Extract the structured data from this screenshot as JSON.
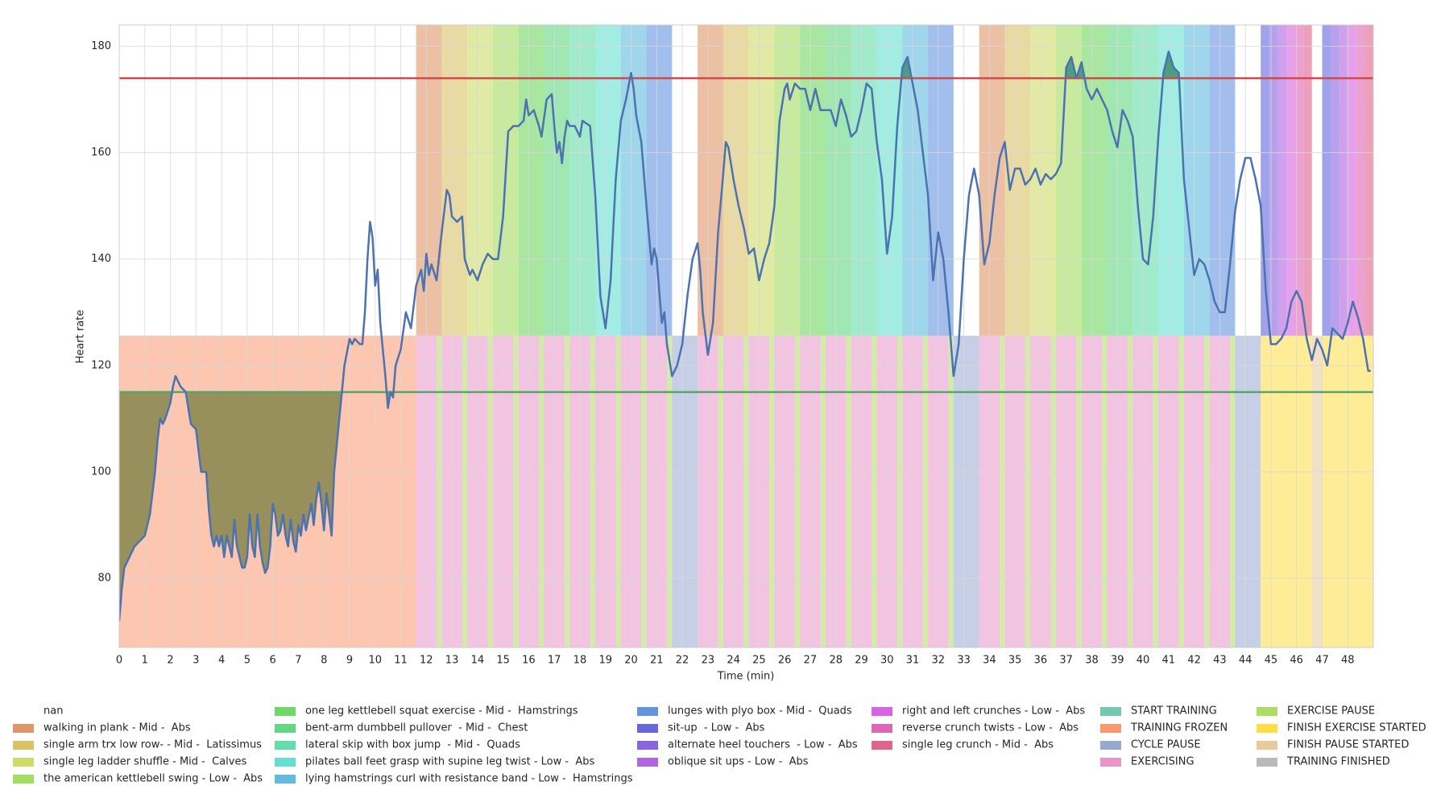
{
  "chart_data": {
    "type": "line",
    "xlabel": "Time (min)",
    "ylabel": "Heart rate",
    "xlim": [
      0,
      49
    ],
    "ylim": [
      67,
      184
    ],
    "xticks": [
      0,
      1,
      2,
      3,
      4,
      5,
      6,
      7,
      8,
      9,
      10,
      11,
      12,
      13,
      14,
      15,
      16,
      17,
      18,
      19,
      20,
      21,
      22,
      23,
      24,
      25,
      26,
      27,
      28,
      29,
      30,
      31,
      32,
      33,
      34,
      35,
      36,
      37,
      38,
      39,
      40,
      41,
      42,
      43,
      44,
      45,
      46,
      47,
      48
    ],
    "yticks": [
      80,
      100,
      120,
      140,
      160,
      180
    ],
    "grid": true,
    "color": "#4c72b0",
    "x": [
      0,
      0.1,
      0.2,
      0.4,
      0.6,
      0.8,
      1.0,
      1.2,
      1.4,
      1.5,
      1.6,
      1.7,
      1.8,
      2.0,
      2.1,
      2.2,
      2.4,
      2.6,
      2.8,
      3.0,
      3.1,
      3.2,
      3.4,
      3.5,
      3.6,
      3.7,
      3.8,
      3.9,
      4.0,
      4.1,
      4.2,
      4.3,
      4.4,
      4.5,
      4.6,
      4.7,
      4.8,
      4.9,
      5.0,
      5.1,
      5.2,
      5.3,
      5.4,
      5.5,
      5.6,
      5.7,
      5.8,
      5.9,
      6.0,
      6.1,
      6.2,
      6.3,
      6.4,
      6.5,
      6.6,
      6.7,
      6.8,
      6.9,
      7.0,
      7.1,
      7.2,
      7.3,
      7.5,
      7.6,
      7.7,
      7.8,
      7.9,
      8.0,
      8.1,
      8.2,
      8.3,
      8.4,
      8.6,
      8.8,
      9.0,
      9.1,
      9.2,
      9.4,
      9.5,
      9.6,
      9.7,
      9.8,
      9.9,
      10.0,
      10.1,
      10.2,
      10.4,
      10.5,
      10.6,
      10.7,
      10.8,
      11.0,
      11.2,
      11.4,
      11.6,
      11.8,
      11.9,
      12.0,
      12.1,
      12.2,
      12.4,
      12.6,
      12.8,
      12.9,
      13.0,
      13.2,
      13.4,
      13.5,
      13.7,
      13.8,
      14.0,
      14.2,
      14.4,
      14.6,
      14.8,
      15.0,
      15.2,
      15.4,
      15.6,
      15.8,
      15.9,
      16.0,
      16.2,
      16.4,
      16.5,
      16.7,
      16.9,
      17.0,
      17.1,
      17.2,
      17.3,
      17.4,
      17.5,
      17.6,
      17.8,
      18.0,
      18.1,
      18.4,
      18.6,
      18.8,
      19.0,
      19.2,
      19.4,
      19.6,
      19.8,
      20.0,
      20.1,
      20.2,
      20.4,
      20.6,
      20.8,
      20.9,
      21.0,
      21.2,
      21.3,
      21.4,
      21.6,
      21.8,
      22.0,
      22.2,
      22.4,
      22.6,
      22.7,
      22.8,
      22.9,
      23.0,
      23.2,
      23.4,
      23.6,
      23.7,
      23.8,
      24.0,
      24.2,
      24.4,
      24.6,
      24.8,
      25.0,
      25.2,
      25.4,
      25.6,
      25.8,
      26.0,
      26.1,
      26.2,
      26.4,
      26.6,
      26.8,
      27.0,
      27.2,
      27.4,
      27.8,
      28.0,
      28.2,
      28.4,
      28.6,
      28.8,
      29.0,
      29.2,
      29.4,
      29.6,
      29.8,
      30.0,
      30.2,
      30.4,
      30.6,
      30.8,
      31.0,
      31.2,
      31.4,
      31.6,
      31.8,
      32.0,
      32.2,
      32.4,
      32.6,
      32.8,
      33.0,
      33.2,
      33.4,
      33.6,
      33.8,
      34.0,
      34.2,
      34.4,
      34.6,
      34.8,
      35.0,
      35.2,
      35.4,
      35.6,
      35.8,
      36.0,
      36.2,
      36.4,
      36.6,
      36.8,
      37.0,
      37.2,
      37.4,
      37.6,
      37.8,
      38.0,
      38.2,
      38.4,
      38.6,
      38.8,
      39.0,
      39.2,
      39.4,
      39.6,
      39.8,
      40.0,
      40.2,
      40.4,
      40.6,
      40.8,
      41.0,
      41.2,
      41.4,
      41.6,
      41.8,
      42.0,
      42.2,
      42.4,
      42.6,
      42.8,
      43.0,
      43.2,
      43.4,
      43.6,
      43.8,
      44.0,
      44.2,
      44.4,
      44.6,
      44.8,
      45.0,
      45.2,
      45.4,
      45.6,
      45.8,
      46.0,
      46.2,
      46.4,
      46.6,
      46.8,
      47.0,
      47.2,
      47.4,
      47.6,
      47.8,
      48.0,
      48.2,
      48.4,
      48.6,
      48.8,
      48.9
    ],
    "values": [
      72,
      78,
      82,
      84,
      86,
      87,
      88,
      92,
      100,
      106,
      110,
      109,
      110,
      113,
      116,
      118,
      116,
      115,
      109,
      108,
      104,
      100,
      100,
      93,
      88,
      86,
      88,
      86,
      88,
      84,
      88,
      86,
      84,
      91,
      86,
      84,
      82,
      82,
      84,
      92,
      86,
      84,
      92,
      86,
      83,
      81,
      82,
      86,
      94,
      92,
      88,
      89,
      92,
      88,
      86,
      91,
      87,
      85,
      90,
      88,
      92,
      89,
      94,
      90,
      95,
      98,
      94,
      89,
      96,
      92,
      88,
      100,
      110,
      120,
      125,
      124,
      125,
      124,
      124,
      130,
      140,
      147,
      144,
      135,
      138,
      128,
      118,
      112,
      115,
      114,
      120,
      123,
      130,
      127,
      135,
      138,
      134,
      141,
      137,
      139,
      136,
      145,
      153,
      152,
      148,
      147,
      148,
      140,
      137,
      138,
      136,
      139,
      141,
      140,
      140,
      148,
      164,
      165,
      165,
      166,
      170,
      167,
      168,
      165,
      163,
      170,
      171,
      165,
      160,
      162,
      158,
      163,
      166,
      165,
      165,
      163,
      166,
      165,
      152,
      133,
      127,
      136,
      155,
      166,
      170,
      175,
      172,
      167,
      162,
      150,
      139,
      142,
      140,
      128,
      130,
      124,
      118,
      120,
      124,
      133,
      140,
      143,
      138,
      130,
      126,
      122,
      128,
      145,
      156,
      162,
      161,
      155,
      150,
      146,
      141,
      142,
      136,
      140,
      143,
      150,
      166,
      172,
      173,
      170,
      173,
      172,
      172,
      168,
      172,
      168,
      168,
      165,
      170,
      167,
      163,
      164,
      168,
      173,
      172,
      162,
      155,
      141,
      148,
      165,
      176,
      178,
      173,
      168,
      160,
      152,
      136,
      145,
      140,
      130,
      118,
      124,
      140,
      152,
      157,
      152,
      139,
      143,
      152,
      159,
      162,
      153,
      157,
      157,
      154,
      155,
      157,
      154,
      156,
      155,
      156,
      158,
      176,
      178,
      174,
      177,
      172,
      170,
      172,
      170,
      168,
      164,
      161,
      168,
      166,
      163,
      150,
      140,
      139,
      148,
      163,
      175,
      179,
      176,
      175,
      155,
      146,
      137,
      140,
      139,
      136,
      132,
      130,
      130,
      139,
      149,
      155,
      159,
      159,
      155,
      150,
      134,
      124,
      124,
      125,
      127,
      132,
      134,
      132,
      125,
      121,
      125,
      123,
      120,
      127,
      126,
      125,
      128,
      132,
      129,
      125,
      119,
      119
    ],
    "upper_limit": {
      "value": 174,
      "color": "#d0494c",
      "fill": "#4f9d80"
    },
    "lower_limit": {
      "value": 115,
      "color": "#55a868",
      "fill": "#978f5c"
    },
    "band_split": 125.6,
    "legend": [
      {
        "name": "nan"
      },
      {
        "name": "walking in plank - Mid -  Abs",
        "color": "#db8c5a"
      },
      {
        "name": "single arm trx low row- - Mid -  Latissimus",
        "color": "#d6bb55"
      },
      {
        "name": "single leg ladder shuffle - Mid -  Calves",
        "color": "#c8d85a"
      },
      {
        "name": "the american kettlebell swing - Low -  Abs",
        "color": "#9ad850"
      },
      {
        "name": "one leg kettlebell squat exercise - Mid -  Hamstrings",
        "color": "#62d454"
      },
      {
        "name": "bent-arm dumbbell pullover  - Mid -  Chest",
        "color": "#52d474"
      },
      {
        "name": "lateral skip with box jump  - Mid -  Quads",
        "color": "#54d8a2"
      },
      {
        "name": "pilates ball feet grasp with supine leg twist - Low -  Abs",
        "color": "#54dccc"
      },
      {
        "name": "lying hamstrings curl with resistance band - Low -  Hamstrings",
        "color": "#52b4dc"
      },
      {
        "name": "lunges with plyo box - Mid -  Quads",
        "color": "#5488dc"
      },
      {
        "name": "sit-up  - Low -  Abs",
        "color": "#5456dc"
      },
      {
        "name": "alternate heel touchers  - Low -  Abs",
        "color": "#7c54dc"
      },
      {
        "name": "oblique sit ups - Low -  Abs",
        "color": "#a854dc"
      },
      {
        "name": "right and left crunches - Low -  Abs",
        "color": "#d454dc"
      },
      {
        "name": "reverse crunch twists - Low -  Abs",
        "color": "#dc54ae"
      },
      {
        "name": "single leg crunch - Mid -  Abs",
        "color": "#dc5480"
      },
      {
        "name": "START TRAINING",
        "color": "#66c2a5"
      },
      {
        "name": "TRAINING FROZEN",
        "color": "#fc8d62"
      },
      {
        "name": "CYCLE PAUSE",
        "color": "#8da0cb"
      },
      {
        "name": "EXERCISING",
        "color": "#e78ac3"
      },
      {
        "name": "EXERCISE PAUSE",
        "color": "#a6d854"
      },
      {
        "name": "FINISH EXERCISE STARTED",
        "color": "#ffd92f"
      },
      {
        "name": "FINISH PAUSE STARTED",
        "color": "#e5c494"
      },
      {
        "name": "TRAINING FINISHED",
        "color": "#b3b3b3"
      }
    ],
    "exercise_bands": [
      [
        11.6,
        12.6,
        1
      ],
      [
        12.6,
        13.6,
        2
      ],
      [
        13.6,
        14.6,
        3
      ],
      [
        14.6,
        15.6,
        4
      ],
      [
        15.6,
        16.6,
        5
      ],
      [
        16.6,
        17.6,
        6
      ],
      [
        17.6,
        18.6,
        7
      ],
      [
        18.6,
        19.6,
        8
      ],
      [
        19.6,
        20.6,
        9
      ],
      [
        20.6,
        21.6,
        10
      ],
      [
        22.6,
        23.6,
        1
      ],
      [
        23.6,
        24.6,
        2
      ],
      [
        24.6,
        25.6,
        3
      ],
      [
        25.6,
        26.6,
        4
      ],
      [
        26.6,
        27.6,
        5
      ],
      [
        27.6,
        28.6,
        6
      ],
      [
        28.6,
        29.6,
        7
      ],
      [
        29.6,
        30.6,
        8
      ],
      [
        30.6,
        31.6,
        9
      ],
      [
        31.6,
        32.6,
        10
      ],
      [
        33.6,
        34.6,
        1
      ],
      [
        34.6,
        35.6,
        2
      ],
      [
        35.6,
        36.6,
        3
      ],
      [
        36.6,
        37.6,
        4
      ],
      [
        37.6,
        38.6,
        5
      ],
      [
        38.6,
        39.6,
        6
      ],
      [
        39.6,
        40.6,
        7
      ],
      [
        40.6,
        41.6,
        8
      ],
      [
        41.6,
        42.6,
        9
      ],
      [
        42.6,
        43.6,
        10
      ],
      [
        44.6,
        44.93,
        11
      ],
      [
        44.93,
        45.27,
        12
      ],
      [
        45.27,
        45.6,
        13
      ],
      [
        45.6,
        45.93,
        14
      ],
      [
        45.93,
        46.27,
        15
      ],
      [
        46.27,
        46.6,
        16
      ],
      [
        47.0,
        47.33,
        11
      ],
      [
        47.33,
        47.67,
        12
      ],
      [
        47.67,
        48.0,
        13
      ],
      [
        48.0,
        48.33,
        14
      ],
      [
        48.33,
        48.67,
        15
      ],
      [
        48.67,
        49.0,
        16
      ]
    ],
    "state_bands": [
      [
        0,
        11.6,
        18
      ],
      [
        11.6,
        12.4,
        20
      ],
      [
        12.4,
        12.6,
        21
      ],
      [
        12.6,
        13.4,
        20
      ],
      [
        13.4,
        13.6,
        21
      ],
      [
        13.6,
        14.4,
        20
      ],
      [
        14.4,
        14.6,
        21
      ],
      [
        14.6,
        15.4,
        20
      ],
      [
        15.4,
        15.6,
        21
      ],
      [
        15.6,
        16.4,
        20
      ],
      [
        16.4,
        16.6,
        21
      ],
      [
        16.6,
        17.4,
        20
      ],
      [
        17.4,
        17.6,
        21
      ],
      [
        17.6,
        18.4,
        20
      ],
      [
        18.4,
        18.6,
        21
      ],
      [
        18.6,
        19.4,
        20
      ],
      [
        19.4,
        19.6,
        21
      ],
      [
        19.6,
        20.4,
        20
      ],
      [
        20.4,
        20.6,
        21
      ],
      [
        20.6,
        21.4,
        20
      ],
      [
        21.4,
        21.6,
        21
      ],
      [
        21.6,
        22.6,
        19
      ],
      [
        22.6,
        23.4,
        20
      ],
      [
        23.4,
        23.6,
        21
      ],
      [
        23.6,
        24.4,
        20
      ],
      [
        24.4,
        24.6,
        21
      ],
      [
        24.6,
        25.4,
        20
      ],
      [
        25.4,
        25.6,
        21
      ],
      [
        25.6,
        26.4,
        20
      ],
      [
        26.4,
        26.6,
        21
      ],
      [
        26.6,
        27.4,
        20
      ],
      [
        27.4,
        27.6,
        21
      ],
      [
        27.6,
        28.4,
        20
      ],
      [
        28.4,
        28.6,
        21
      ],
      [
        28.6,
        29.4,
        20
      ],
      [
        29.4,
        29.6,
        21
      ],
      [
        29.6,
        30.4,
        20
      ],
      [
        30.4,
        30.6,
        21
      ],
      [
        30.6,
        31.4,
        20
      ],
      [
        31.4,
        31.6,
        21
      ],
      [
        31.6,
        32.4,
        20
      ],
      [
        32.4,
        32.6,
        21
      ],
      [
        32.6,
        33.6,
        19
      ],
      [
        33.6,
        34.4,
        20
      ],
      [
        34.4,
        34.6,
        21
      ],
      [
        34.6,
        35.4,
        20
      ],
      [
        35.4,
        35.6,
        21
      ],
      [
        35.6,
        36.4,
        20
      ],
      [
        36.4,
        36.6,
        21
      ],
      [
        36.6,
        37.4,
        20
      ],
      [
        37.4,
        37.6,
        21
      ],
      [
        37.6,
        38.4,
        20
      ],
      [
        38.4,
        38.6,
        21
      ],
      [
        38.6,
        39.4,
        20
      ],
      [
        39.4,
        39.6,
        21
      ],
      [
        39.6,
        40.4,
        20
      ],
      [
        40.4,
        40.6,
        21
      ],
      [
        40.6,
        41.4,
        20
      ],
      [
        41.4,
        41.6,
        21
      ],
      [
        41.6,
        42.4,
        20
      ],
      [
        42.4,
        42.6,
        21
      ],
      [
        42.6,
        43.4,
        20
      ],
      [
        43.4,
        43.6,
        21
      ],
      [
        43.6,
        44.6,
        19
      ],
      [
        44.6,
        46.6,
        22
      ],
      [
        46.6,
        47.0,
        23
      ],
      [
        47.0,
        49.0,
        22
      ]
    ]
  }
}
